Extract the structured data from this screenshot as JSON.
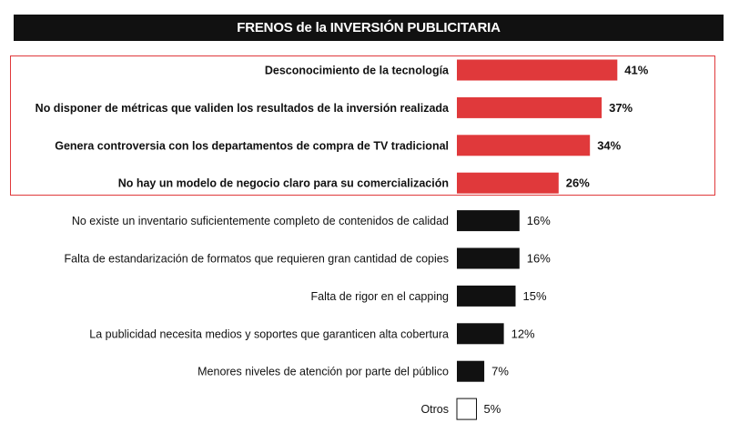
{
  "chart_data": {
    "type": "bar",
    "orientation": "horizontal",
    "title": "FRENOS de la INVERSIÓN PUBLICITARIA",
    "categories": [
      "Desconocimiento de la tecnología",
      "No disponer de métricas que validen los resultados de la inversión realizada",
      "Genera controversia con los departamentos de compra de TV tradicional",
      "No hay un modelo de negocio claro para su comercialización",
      "No existe un inventario suficientemente completo de contenidos de calidad",
      "Falta de estandarización de formatos que requieren gran cantidad de copies",
      "Falta de rigor en el capping",
      "La publicidad necesita medios y soportes que garanticen alta cobertura",
      "Menores niveles de atención por parte del público",
      "Otros"
    ],
    "values": [
      41,
      37,
      34,
      26,
      16,
      16,
      15,
      12,
      7,
      5
    ],
    "value_labels": [
      "41%",
      "37%",
      "34%",
      "26%",
      "16%",
      "16%",
      "15%",
      "12%",
      "7%",
      "5%"
    ],
    "highlighted": [
      true,
      true,
      true,
      true,
      false,
      false,
      false,
      false,
      false,
      false
    ],
    "unit": "%",
    "grid": false,
    "legend": "none"
  },
  "colors": {
    "highlight": "#e0393b",
    "default_bar": "#111111",
    "outline_bar_fill": "#ffffff",
    "title_bg": "#111111",
    "title_text": "#ffffff"
  }
}
